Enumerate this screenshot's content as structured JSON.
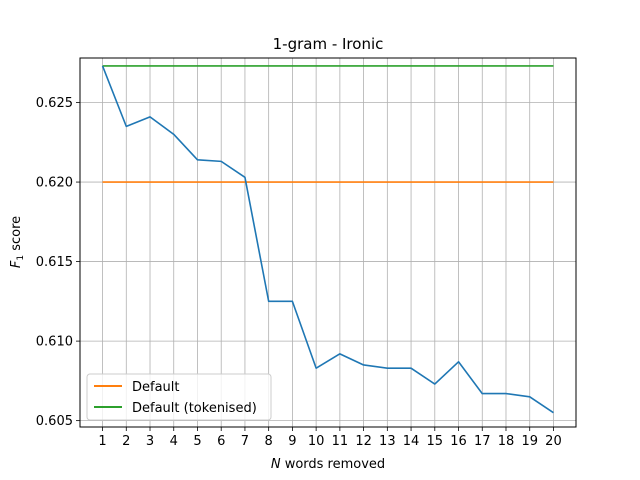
{
  "chart_data": {
    "type": "line",
    "title": "1-gram - Ironic",
    "xlabel_italic": "N",
    "xlabel_rest": " words removed",
    "ylabel_main": "F",
    "ylabel_sub": "1",
    "ylabel_rest": " score",
    "x": [
      1,
      2,
      3,
      4,
      5,
      6,
      7,
      8,
      9,
      10,
      11,
      12,
      13,
      14,
      15,
      16,
      17,
      18,
      19,
      20
    ],
    "xlim": [
      0.05,
      20.95
    ],
    "ylim": [
      0.6046,
      0.6278
    ],
    "yticks": [
      0.605,
      0.61,
      0.615,
      0.62,
      0.625
    ],
    "ytick_labels": [
      "0.605",
      "0.610",
      "0.615",
      "0.620",
      "0.625"
    ],
    "grid": true,
    "legend_position": "lower-left",
    "series": [
      {
        "name": "",
        "color": "#1f77b4",
        "values": [
          0.6273,
          0.6235,
          0.6241,
          0.623,
          0.6214,
          0.6213,
          0.6203,
          0.6125,
          0.6125,
          0.6083,
          0.6092,
          0.6085,
          0.6083,
          0.6083,
          0.6073,
          0.6087,
          0.6067,
          0.6067,
          0.6065,
          0.6055
        ]
      },
      {
        "name": "Default",
        "color": "#ff7f0e",
        "values": [
          0.62,
          0.62,
          0.62,
          0.62,
          0.62,
          0.62,
          0.62,
          0.62,
          0.62,
          0.62,
          0.62,
          0.62,
          0.62,
          0.62,
          0.62,
          0.62,
          0.62,
          0.62,
          0.62,
          0.62
        ]
      },
      {
        "name": "Default (tokenised)",
        "color": "#2ca02c",
        "values": [
          0.6273,
          0.6273,
          0.6273,
          0.6273,
          0.6273,
          0.6273,
          0.6273,
          0.6273,
          0.6273,
          0.6273,
          0.6273,
          0.6273,
          0.6273,
          0.6273,
          0.6273,
          0.6273,
          0.6273,
          0.6273,
          0.6273,
          0.6273
        ]
      }
    ]
  }
}
